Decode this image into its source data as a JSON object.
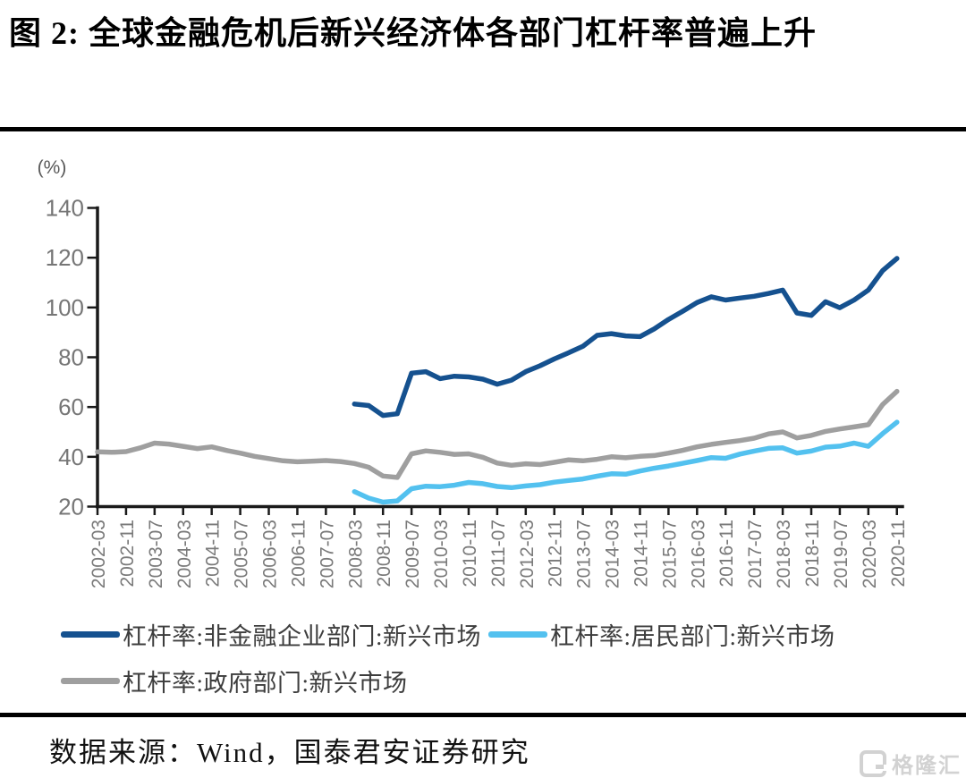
{
  "title": "图 2: 全球金融危机后新兴经济体各部门杠杆率普遍上升",
  "footer": {
    "source_text": "数据来源：Wind，国泰君安证券研究"
  },
  "watermark": {
    "icon_letter": "G",
    "text": "格隆汇"
  },
  "chart_data": {
    "type": "line",
    "unit_label": "(%)",
    "ylim": [
      20,
      140
    ],
    "yticks": [
      20,
      40,
      60,
      80,
      100,
      120,
      140
    ],
    "grid": false,
    "legend_position": "bottom",
    "axis_color": "#1a1a1a",
    "tick_label_color": "#7a7a7a",
    "x_interval_months": 4,
    "total_points": 57,
    "x_tick_labels": [
      "2002-03",
      "2002-11",
      "2003-07",
      "2004-03",
      "2004-11",
      "2005-07",
      "2006-03",
      "2006-11",
      "2007-07",
      "2008-03",
      "2008-11",
      "2009-07",
      "2010-03",
      "2010-11",
      "2011-07",
      "2012-03",
      "2012-11",
      "2013-07",
      "2014-03",
      "2014-11",
      "2015-07",
      "2016-03",
      "2016-11",
      "2017-07",
      "2018-03",
      "2018-11",
      "2019-07",
      "2020-03",
      "2020-11"
    ],
    "series": [
      {
        "name": "杠杆率:非金融企业部门:新兴市场",
        "color": "#15518f",
        "start_label": "2008-03",
        "start_index": 18,
        "values": [
          61.2,
          60.6,
          56.6,
          57.3,
          73.6,
          74.2,
          71.4,
          72.4,
          72.1,
          71.2,
          69.2,
          70.8,
          74.2,
          76.6,
          79.3,
          81.8,
          84.4,
          88.8,
          89.5,
          88.6,
          88.3,
          91.4,
          95.2,
          98.5,
          102.0,
          104.3,
          103.0,
          103.8,
          104.5,
          105.6,
          107.0,
          97.8,
          96.8,
          102.3,
          99.9,
          103.0,
          107.0,
          114.8,
          119.7
        ]
      },
      {
        "name": "杠杆率:居民部门:新兴市场",
        "color": "#53c1ef",
        "start_label": "2008-03",
        "start_index": 18,
        "values": [
          26.0,
          23.4,
          21.8,
          22.3,
          27.2,
          28.2,
          28.0,
          28.6,
          29.7,
          29.2,
          28.1,
          27.6,
          28.3,
          28.8,
          29.8,
          30.5,
          31.1,
          32.2,
          33.2,
          33.0,
          34.3,
          35.4,
          36.3,
          37.4,
          38.5,
          39.7,
          39.4,
          41.1,
          42.3,
          43.4,
          43.6,
          41.5,
          42.3,
          43.9,
          44.3,
          45.5,
          44.2,
          49.3,
          53.9
        ]
      },
      {
        "name": "杠杆率:政府部门:新兴市场",
        "color": "#9f9f9f",
        "start_label": "2002-03",
        "start_index": 0,
        "values": [
          42.0,
          41.8,
          42.1,
          43.6,
          45.5,
          45.1,
          44.2,
          43.3,
          44.0,
          42.6,
          41.5,
          40.2,
          39.3,
          38.4,
          38.0,
          38.2,
          38.5,
          38.1,
          37.3,
          35.8,
          32.3,
          31.7,
          41.2,
          42.4,
          41.8,
          41.0,
          41.2,
          39.8,
          37.5,
          36.6,
          37.2,
          36.9,
          37.8,
          38.8,
          38.4,
          39.0,
          40.0,
          39.6,
          40.2,
          40.5,
          41.5,
          42.6,
          44.0,
          45.0,
          45.8,
          46.5,
          47.5,
          49.2,
          50.0,
          47.6,
          48.6,
          50.2,
          51.2,
          52.0,
          52.9,
          61.0,
          66.3
        ]
      }
    ]
  }
}
